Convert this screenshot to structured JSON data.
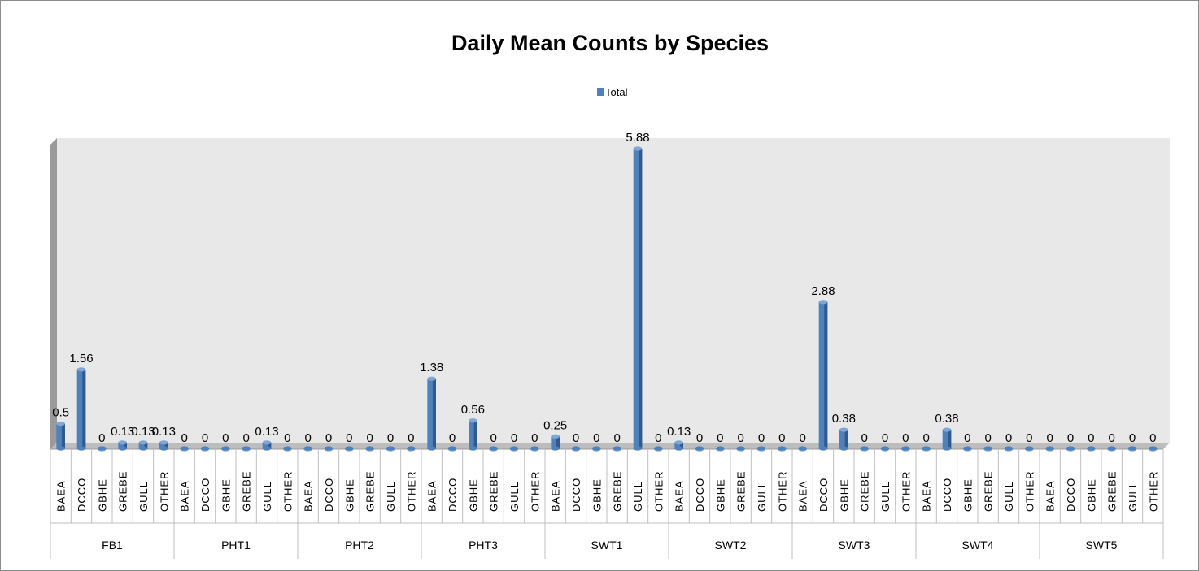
{
  "chart_data": {
    "type": "bar",
    "title": "Daily Mean Counts by Species",
    "legend": {
      "position": "top",
      "entries": [
        "Total"
      ]
    },
    "grid": false,
    "ylim": [
      0,
      6.2
    ],
    "species": [
      "BAEA",
      "DCCO",
      "GBHE",
      "GREBE",
      "GULL",
      "OTHER"
    ],
    "groups": [
      {
        "name": "FB1",
        "values": [
          0.5,
          1.56,
          0,
          0.13,
          0.13,
          0.13
        ]
      },
      {
        "name": "PHT1",
        "values": [
          0,
          0,
          0,
          0,
          0.13,
          0
        ]
      },
      {
        "name": "PHT2",
        "values": [
          0,
          0,
          0,
          0,
          0,
          0
        ]
      },
      {
        "name": "PHT3",
        "values": [
          1.38,
          0,
          0.56,
          0,
          0,
          0
        ]
      },
      {
        "name": "SWT1",
        "values": [
          0.25,
          0,
          0,
          0,
          5.88,
          0
        ]
      },
      {
        "name": "SWT2",
        "values": [
          0.13,
          0,
          0,
          0,
          0,
          0
        ]
      },
      {
        "name": "SWT3",
        "values": [
          0,
          2.88,
          0.38,
          0,
          0,
          0
        ]
      },
      {
        "name": "SWT4",
        "values": [
          0,
          0.38,
          0,
          0,
          0,
          0
        ]
      },
      {
        "name": "SWT5",
        "values": [
          0,
          0,
          0,
          0,
          0,
          0
        ]
      }
    ],
    "series": [
      {
        "name": "Total",
        "color": "#4F81BD"
      }
    ]
  },
  "colors": {
    "bar": "#4F81BD",
    "bar_dark": "#2E5A8E",
    "bar_light": "#7EA6D6",
    "plot_back": "#E8E8E8",
    "wall_left": "#9A9A9A",
    "floor": "#BDBDBD"
  }
}
